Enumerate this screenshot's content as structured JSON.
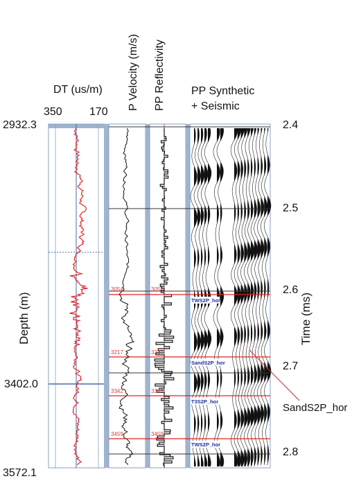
{
  "titles": {
    "dt": "DT (us/m)",
    "p_velocity": "P Velocity (m/s)",
    "pp_reflectivity": "PP Reflectivity",
    "synthetic_line1": "PP Synthetic",
    "synthetic_line2": "+ Seismic"
  },
  "dt_scale": {
    "left": "350",
    "right": "170"
  },
  "depth_axis": {
    "label": "Depth (m)",
    "top": "2932.3",
    "marker": "3402.0",
    "bottom": "3572.1"
  },
  "time_axis": {
    "label": "Time (ms)",
    "ticks": [
      "2.4",
      "2.5",
      "2.6",
      "2.7",
      "2.8"
    ]
  },
  "horizons": {
    "depth_labels": [
      "3054",
      "3217",
      "3342",
      "3459"
    ],
    "seismic_labels": [
      "TWS2P_hor",
      "SandS2P_hor",
      "T3S2P_hor",
      "TWS2P_hor"
    ],
    "callout": "SandS2P_hor"
  },
  "colors": {
    "dt_curve": "#e32424",
    "horizon": "#e02020",
    "horizon_text": "#d04040",
    "grid": "#333333",
    "track_edge": "#9fb4cf",
    "axis_line": "#4a6aa8",
    "seismic_label": "#1c2f9a"
  }
}
